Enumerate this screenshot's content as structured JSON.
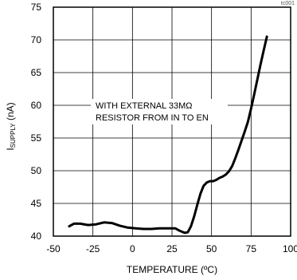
{
  "chart_data": {
    "type": "line",
    "corner_label": "tc001",
    "xlabel": "TEMPERATURE (ºC)",
    "ylabel_main": "I",
    "ylabel_sub": "SUPPLY",
    "ylabel_unit": " (nA)",
    "xlim": [
      -50,
      100
    ],
    "ylim": [
      40,
      75
    ],
    "x_ticks": [
      -50,
      -25,
      0,
      25,
      50,
      75,
      100
    ],
    "y_ticks": [
      40,
      45,
      50,
      55,
      60,
      65,
      70,
      75
    ],
    "grid": true,
    "annotation": [
      "WITH EXTERNAL 33MΩ",
      "RESISTOR FROM IN TO EN"
    ],
    "series": [
      {
        "color": "#000000",
        "x": [
          -40,
          -37,
          -33,
          -28,
          -23,
          -18,
          -13,
          -8,
          -3,
          2,
          7,
          12,
          17,
          22,
          27,
          30,
          33,
          35,
          37,
          39,
          41,
          43,
          45,
          47,
          49,
          51,
          53,
          55,
          57,
          59,
          61,
          63,
          65,
          67,
          69,
          71,
          73,
          75,
          77,
          79,
          81,
          83,
          85
        ],
        "y": [
          41.5,
          41.9,
          41.9,
          41.7,
          41.8,
          42.1,
          42.0,
          41.6,
          41.3,
          41.2,
          41.1,
          41.1,
          41.2,
          41.2,
          41.2,
          40.8,
          40.5,
          40.6,
          41.5,
          43.0,
          44.8,
          46.5,
          47.7,
          48.2,
          48.4,
          48.4,
          48.6,
          48.9,
          49.1,
          49.4,
          49.9,
          50.7,
          51.9,
          53.2,
          54.6,
          56.0,
          57.5,
          59.5,
          61.7,
          64.0,
          66.3,
          68.4,
          70.5
        ]
      }
    ]
  }
}
